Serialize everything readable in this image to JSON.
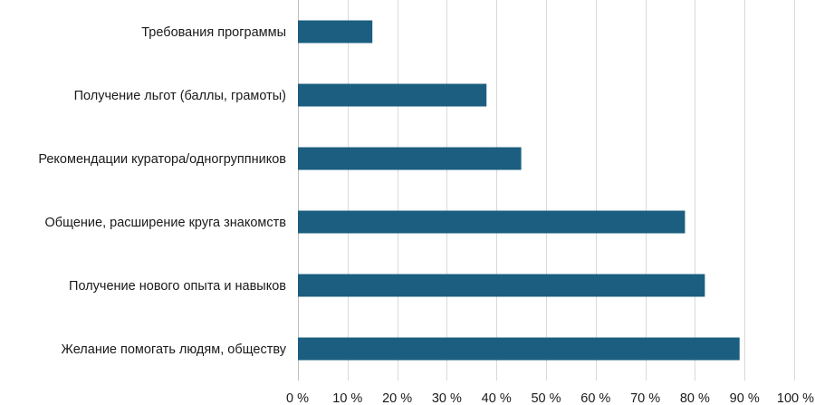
{
  "chart_data": {
    "type": "bar",
    "orientation": "horizontal",
    "categories": [
      "Требования программы",
      "Получение льгот (баллы, грамоты)",
      "Рекомендации куратора/одногруппников",
      "Общение, расширение круга знакомств",
      "Получение нового опыта и навыков",
      "Желание помогать людям, обществу"
    ],
    "values": [
      15,
      38,
      45,
      78,
      82,
      89
    ],
    "xlim": [
      0,
      100
    ],
    "xticks": [
      0,
      10,
      20,
      30,
      40,
      50,
      60,
      70,
      80,
      90,
      100
    ],
    "tick_labels": [
      "0 %",
      "10 %",
      "20 %",
      "30 %",
      "40 %",
      "50 %",
      "60 %",
      "70 %",
      "80 %",
      "90 %",
      "100 %"
    ],
    "unit": "%",
    "grid": "vertical",
    "title": "",
    "xlabel": "",
    "ylabel": "",
    "bar_color": "#1b5e80"
  }
}
